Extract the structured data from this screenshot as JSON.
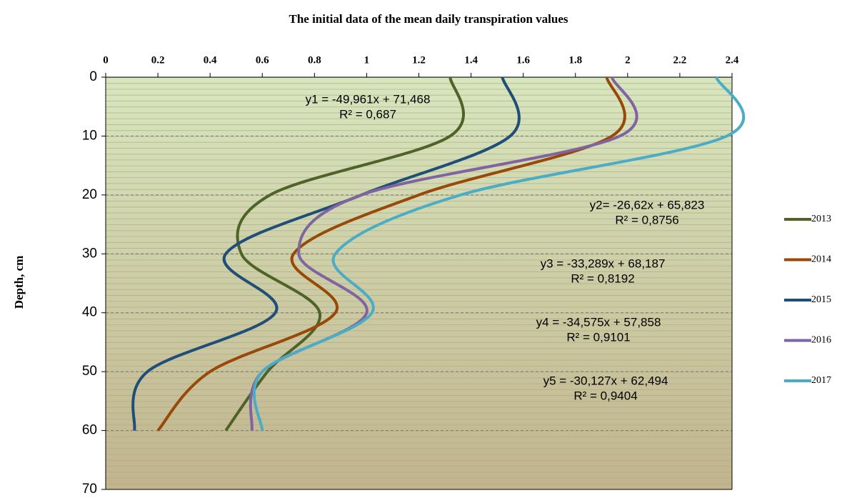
{
  "chart_data": {
    "type": "line",
    "title": "The initial data of the mean daily transpiration  values",
    "y_label": "Depth, cm",
    "y": [
      0,
      10,
      20,
      30,
      40,
      50,
      60
    ],
    "series": [
      {
        "name": "2013",
        "color": "#4f6228",
        "values": [
          1.32,
          1.32,
          0.63,
          0.52,
          0.82,
          0.62,
          0.46
        ]
      },
      {
        "name": "2014",
        "color": "#984807",
        "values": [
          1.92,
          1.94,
          1.2,
          0.72,
          0.88,
          0.4,
          0.2
        ]
      },
      {
        "name": "2015",
        "color": "#1f4e79",
        "values": [
          1.52,
          1.55,
          0.98,
          0.46,
          0.65,
          0.16,
          0.11
        ]
      },
      {
        "name": "2016",
        "color": "#8064a2",
        "values": [
          1.94,
          1.97,
          0.98,
          0.74,
          1.0,
          0.6,
          0.56
        ]
      },
      {
        "name": "2017",
        "color": "#4bacc6",
        "values": [
          2.34,
          2.38,
          1.36,
          0.88,
          1.02,
          0.6,
          0.6
        ]
      }
    ],
    "annotations": [
      [
        "y1 = -49,961x + 71,468",
        "R² = 0,687"
      ],
      [
        "y2= -26,62x + 65,823",
        "R² = 0,8756"
      ],
      [
        "y3 = -33,289x + 68,187",
        "R² = 0,8192"
      ],
      [
        "y4 = -34,575x + 57,858",
        "R² = 0,9101"
      ],
      [
        "y5 = -30,127x + 62,494",
        "R² = 0,9404"
      ]
    ],
    "xlim": [
      0,
      2.4
    ],
    "xticks": [
      0,
      0.2,
      0.4,
      0.6,
      0.8,
      1,
      1.2,
      1.4,
      1.6,
      1.8,
      2,
      2.2,
      2.4
    ],
    "ylim": [
      0,
      70
    ],
    "yticks": [
      0,
      10,
      20,
      30,
      40,
      50,
      60,
      70
    ],
    "y_inverted": true,
    "grid": true,
    "legend": "right"
  }
}
